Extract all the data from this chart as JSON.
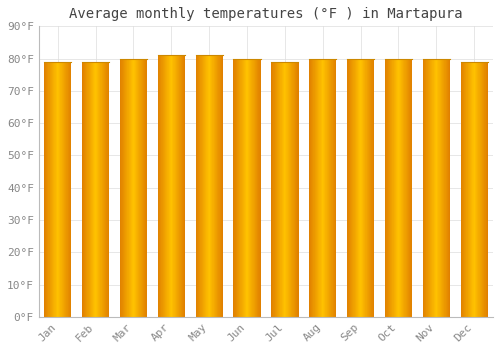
{
  "title": "Average monthly temperatures (°F ) in Martapura",
  "months": [
    "Jan",
    "Feb",
    "Mar",
    "Apr",
    "May",
    "Jun",
    "Jul",
    "Aug",
    "Sep",
    "Oct",
    "Nov",
    "Dec"
  ],
  "values": [
    79,
    79,
    80,
    81,
    81,
    80,
    79,
    80,
    80,
    80,
    80,
    79
  ],
  "ylim": [
    0,
    90
  ],
  "yticks": [
    0,
    10,
    20,
    30,
    40,
    50,
    60,
    70,
    80,
    90
  ],
  "ytick_labels": [
    "0°F",
    "10°F",
    "20°F",
    "30°F",
    "40°F",
    "50°F",
    "60°F",
    "70°F",
    "80°F",
    "90°F"
  ],
  "bar_color_center": "#FFC200",
  "bar_color_edge": "#E08000",
  "bar_edge_color": "#CC8800",
  "plot_bg_color": "#FFFFFF",
  "fig_bg_color": "#FFFFFF",
  "grid_color": "#DDDDDD",
  "title_fontsize": 10,
  "tick_fontsize": 8,
  "font_family": "monospace",
  "bar_width": 0.72
}
